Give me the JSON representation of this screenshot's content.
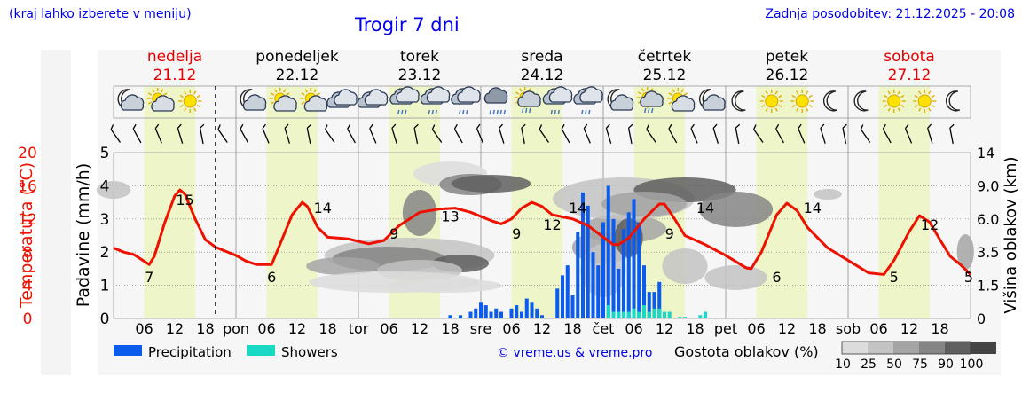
{
  "header": {
    "menu_hint": "(kraj lahko izberete v meniju)",
    "title": "Trogir 7 dni",
    "last_update": "Zadnja posodobitev: 21.12.2025 - 20:08"
  },
  "colors": {
    "weekend_day": "#e50000",
    "weekday": "#000000",
    "temperature": "#ee1100",
    "precipitation": "#0b5ced",
    "showers": "#18d9c4",
    "daylight": "#eef5c8",
    "link": "#0000ee"
  },
  "days": [
    {
      "name": "nedelja",
      "date": "21.12",
      "weekend": true,
      "icons": [
        "moon-cloud-icon",
        "sun-cloud-icon",
        "sun-icon"
      ]
    },
    {
      "name": "ponedeljek",
      "date": "22.12",
      "weekend": false,
      "icons": [
        "moon-cloud-icon",
        "sun-cloud-icon",
        "sun-cloud-icon",
        "cloud-icon"
      ]
    },
    {
      "name": "torek",
      "date": "23.12",
      "weekend": false,
      "icons": [
        "cloud-icon",
        "rain-cloud-icon",
        "rain-cloud-icon",
        "rain-cloud-icon"
      ]
    },
    {
      "name": "sreda",
      "date": "24.12",
      "weekend": false,
      "icons": [
        "heavy-rain-icon",
        "sun-rain-icon",
        "rain-cloud-icon",
        "rain-cloud-icon"
      ]
    },
    {
      "name": "četrtek",
      "date": "25.12",
      "weekend": false,
      "icons": [
        "moon-cloud-icon",
        "sun-rain-icon",
        "sun-cloud-icon",
        "moon-cloud-icon"
      ]
    },
    {
      "name": "petek",
      "date": "26.12",
      "weekend": false,
      "icons": [
        "moon-icon",
        "sun-icon",
        "sun-icon",
        "moon-icon"
      ]
    },
    {
      "name": "sobota",
      "date": "27.12",
      "weekend": true,
      "icons": [
        "moon-icon",
        "sun-icon",
        "sun-icon",
        "moon-icon"
      ]
    }
  ],
  "chart_data": {
    "type": "line",
    "title": "Trogir 7 dni",
    "x_unit": "hours since 21.12 00:00",
    "x_range": [
      0,
      168
    ],
    "now_hour": 20,
    "x_ticks": [
      {
        "h": 6,
        "label": "06"
      },
      {
        "h": 12,
        "label": "12"
      },
      {
        "h": 18,
        "label": "18"
      },
      {
        "h": 24,
        "label": "pon"
      },
      {
        "h": 30,
        "label": "06"
      },
      {
        "h": 36,
        "label": "12"
      },
      {
        "h": 42,
        "label": "18"
      },
      {
        "h": 48,
        "label": "tor"
      },
      {
        "h": 54,
        "label": "06"
      },
      {
        "h": 60,
        "label": "12"
      },
      {
        "h": 66,
        "label": "18"
      },
      {
        "h": 72,
        "label": "sre"
      },
      {
        "h": 78,
        "label": "06"
      },
      {
        "h": 84,
        "label": "12"
      },
      {
        "h": 90,
        "label": "18"
      },
      {
        "h": 96,
        "label": "čet"
      },
      {
        "h": 102,
        "label": "06"
      },
      {
        "h": 108,
        "label": "12"
      },
      {
        "h": 114,
        "label": "18"
      },
      {
        "h": 120,
        "label": "pet"
      },
      {
        "h": 126,
        "label": "06"
      },
      {
        "h": 132,
        "label": "12"
      },
      {
        "h": 138,
        "label": "18"
      },
      {
        "h": 144,
        "label": "sob"
      },
      {
        "h": 150,
        "label": "06"
      },
      {
        "h": 156,
        "label": "12"
      },
      {
        "h": 162,
        "label": "18"
      }
    ],
    "daylight_intervals": [
      [
        6,
        16
      ],
      [
        30,
        40
      ],
      [
        54,
        64
      ],
      [
        78,
        88
      ],
      [
        102,
        112
      ],
      [
        126,
        136
      ],
      [
        150,
        160
      ]
    ],
    "temperature": {
      "name": "Temperatura (°C)",
      "ylabel": "Temperatura (°C)",
      "range": [
        0,
        20
      ],
      "ticks": [
        0,
        4,
        8,
        12,
        16,
        20
      ],
      "points": [
        [
          0,
          8.5
        ],
        [
          2,
          8.0
        ],
        [
          4,
          7.7
        ],
        [
          6,
          6.9
        ],
        [
          7,
          6.5
        ],
        [
          8,
          7.5
        ],
        [
          10,
          11.5
        ],
        [
          12,
          14.8
        ],
        [
          13,
          15.5
        ],
        [
          14,
          15.0
        ],
        [
          16,
          12.0
        ],
        [
          18,
          9.5
        ],
        [
          20,
          8.6
        ],
        [
          24,
          7.6
        ],
        [
          26,
          6.9
        ],
        [
          28,
          6.5
        ],
        [
          31,
          6.5
        ],
        [
          33,
          9.5
        ],
        [
          35,
          12.5
        ],
        [
          37,
          14.0
        ],
        [
          38,
          13.5
        ],
        [
          40,
          11.0
        ],
        [
          42,
          9.8
        ],
        [
          46,
          9.6
        ],
        [
          50,
          9.0
        ],
        [
          53,
          9.4
        ],
        [
          56,
          11.2
        ],
        [
          60,
          12.8
        ],
        [
          64,
          13.2
        ],
        [
          67,
          13.3
        ],
        [
          70,
          12.8
        ],
        [
          74,
          11.8
        ],
        [
          76,
          11.4
        ],
        [
          78,
          12.0
        ],
        [
          80,
          13.3
        ],
        [
          82,
          14.0
        ],
        [
          84,
          13.5
        ],
        [
          86,
          12.5
        ],
        [
          90,
          12.0
        ],
        [
          93,
          11.2
        ],
        [
          96,
          9.8
        ],
        [
          98,
          8.9
        ],
        [
          99,
          8.9
        ],
        [
          101,
          9.7
        ],
        [
          104,
          12.0
        ],
        [
          107,
          13.8
        ],
        [
          108,
          13.8
        ],
        [
          110,
          12.0
        ],
        [
          112,
          10.0
        ],
        [
          116,
          8.9
        ],
        [
          120,
          7.6
        ],
        [
          124,
          6.1
        ],
        [
          125,
          6.0
        ],
        [
          127,
          8.0
        ],
        [
          130,
          12.5
        ],
        [
          132,
          13.9
        ],
        [
          134,
          13.0
        ],
        [
          136,
          11.0
        ],
        [
          140,
          8.5
        ],
        [
          144,
          7.0
        ],
        [
          148,
          5.5
        ],
        [
          151,
          5.3
        ],
        [
          153,
          7.0
        ],
        [
          156,
          10.5
        ],
        [
          158,
          12.4
        ],
        [
          160,
          11.6
        ],
        [
          162,
          9.5
        ],
        [
          164,
          7.5
        ],
        [
          166,
          6.5
        ],
        [
          168,
          5.3
        ]
      ],
      "labels": [
        [
          7,
          7
        ],
        [
          14,
          15
        ],
        [
          31,
          6
        ],
        [
          41,
          14
        ],
        [
          55,
          9
        ],
        [
          66,
          13
        ],
        [
          79,
          9
        ],
        [
          86,
          12
        ],
        [
          91,
          14
        ],
        [
          109,
          9
        ],
        [
          116,
          14
        ],
        [
          130,
          6
        ],
        [
          137,
          14
        ],
        [
          153,
          5
        ],
        [
          160,
          12
        ],
        [
          169,
          5
        ]
      ]
    },
    "precipitation": {
      "name": "Precipitation",
      "ylabel": "Padavine (mm/h)",
      "range": [
        0,
        5
      ],
      "ticks": [
        0,
        1,
        2,
        3,
        4,
        5
      ],
      "values": [
        [
          66,
          0.1
        ],
        [
          68,
          0.1
        ],
        [
          70,
          0.2
        ],
        [
          71,
          0.3
        ],
        [
          72,
          0.5
        ],
        [
          73,
          0.4
        ],
        [
          74,
          0.2
        ],
        [
          75,
          0.3
        ],
        [
          76,
          0.2
        ],
        [
          78,
          0.3
        ],
        [
          79,
          0.4
        ],
        [
          80,
          0.2
        ],
        [
          81,
          0.6
        ],
        [
          82,
          0.5
        ],
        [
          83,
          0.3
        ],
        [
          84,
          0.1
        ],
        [
          87,
          0.9
        ],
        [
          88,
          1.3
        ],
        [
          89,
          1.6
        ],
        [
          90,
          0.7
        ],
        [
          91,
          2.6
        ],
        [
          92,
          3.8
        ],
        [
          93,
          3.4
        ],
        [
          94,
          2.0
        ],
        [
          95,
          1.6
        ],
        [
          96,
          2.9
        ],
        [
          97,
          4.0
        ],
        [
          98,
          3.0
        ],
        [
          99,
          1.5
        ],
        [
          100,
          2.7
        ],
        [
          101,
          3.2
        ],
        [
          102,
          3.6
        ],
        [
          103,
          2.9
        ],
        [
          104,
          1.6
        ],
        [
          105,
          0.8
        ],
        [
          106,
          0.8
        ],
        [
          107,
          1.1
        ],
        [
          116,
          0.1
        ]
      ]
    },
    "showers": {
      "name": "Showers",
      "values": [
        [
          97,
          0.4
        ],
        [
          98,
          0.2
        ],
        [
          99,
          0.2
        ],
        [
          100,
          0.2
        ],
        [
          101,
          0.2
        ],
        [
          102,
          0.3
        ],
        [
          103,
          0.2
        ],
        [
          104,
          0.4
        ],
        [
          105,
          0.2
        ],
        [
          106,
          0.3
        ],
        [
          107,
          0.3
        ],
        [
          108,
          0.2
        ],
        [
          109,
          0.2
        ],
        [
          111,
          0.05
        ],
        [
          112,
          0.05
        ],
        [
          115,
          0.1
        ],
        [
          116,
          0.2
        ]
      ]
    },
    "cloud_height": {
      "ylabel": "Višina oblakov (km)",
      "range": [
        0,
        14
      ],
      "ticks": [
        0,
        1.5,
        3.5,
        6.0,
        9.0,
        14
      ]
    },
    "cloud_legend": {
      "title": "Gostota oblakov (%)",
      "steps": [
        10,
        25,
        50,
        75,
        90,
        100
      ],
      "shades": [
        "#dcdcdc",
        "#c3c3c3",
        "#a4a4a4",
        "#858585",
        "#5f5f5f",
        "#444444"
      ]
    },
    "legend": [
      {
        "name": "Precipitation",
        "color": "#0b5ced"
      },
      {
        "name": "Showers",
        "color": "#18d9c4"
      }
    ],
    "credit": "© vreme.us & vreme.pro",
    "wind_barb_count": 40
  }
}
